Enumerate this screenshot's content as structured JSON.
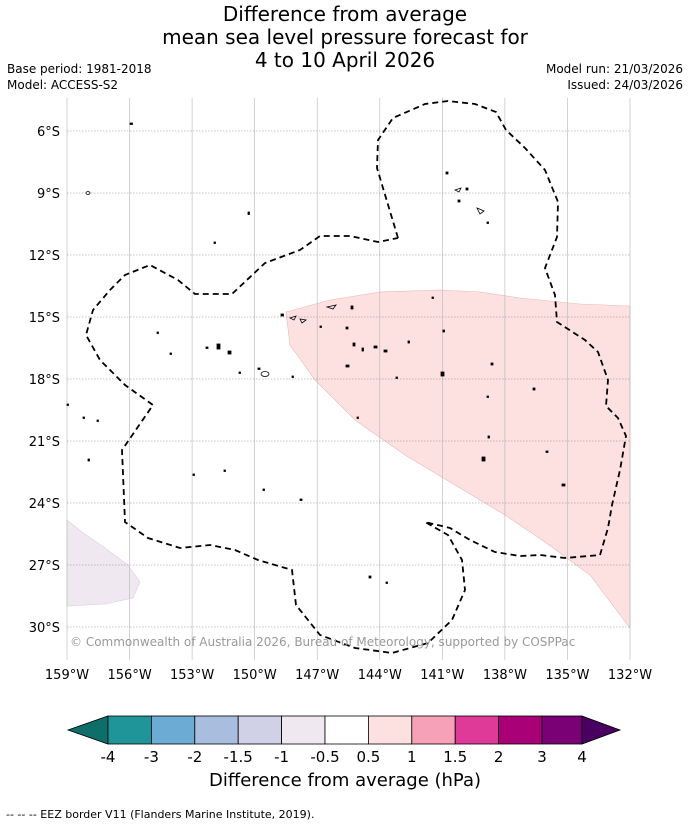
{
  "header": {
    "title_line1": "Difference from average",
    "title_line2": "mean sea level pressure forecast for",
    "title_line3": "4 to 10 April 2026",
    "base_period": "Base period: 1981-2018",
    "model": "Model: ACCESS-S2",
    "model_run": "Model run: 21/03/2026",
    "issued": "Issued: 24/03/2026"
  },
  "map": {
    "lat_labels": [
      "6°S",
      "9°S",
      "12°S",
      "15°S",
      "18°S",
      "21°S",
      "24°S",
      "27°S",
      "30°S"
    ],
    "lon_labels": [
      "159°W",
      "156°W",
      "153°W",
      "150°W",
      "147°W",
      "144°W",
      "141°W",
      "138°W",
      "135°W",
      "132°W"
    ],
    "copyright": "© Commonwealth of Australia 2026, Bureau of Meteorology, supported by COSPPac",
    "anomaly_regions": [
      {
        "class": "0.5 to 1",
        "color": "#fde0e0",
        "location": "central-east"
      },
      {
        "class": "-1 to -0.5",
        "color": "#efe8f0",
        "location": "south-west corner"
      }
    ]
  },
  "legend": {
    "ticks": [
      "-4",
      "-3",
      "-2",
      "-1.5",
      "-1",
      "-0.5",
      "0.5",
      "1",
      "1.5",
      "2",
      "3",
      "4"
    ],
    "colors": [
      "#0d6e6a",
      "#1f9599",
      "#6cabd3",
      "#a9bedf",
      "#d0d0e6",
      "#efe8f0",
      "#ffffff",
      "#fde0e0",
      "#f7a1b8",
      "#e03a98",
      "#aa0077",
      "#7a0075",
      "#4a0060"
    ],
    "label": "Difference from average (hPa)"
  },
  "footer": {
    "note": "--  --  -- EEZ border V11 (Flanders Marine Institute, 2019)."
  }
}
